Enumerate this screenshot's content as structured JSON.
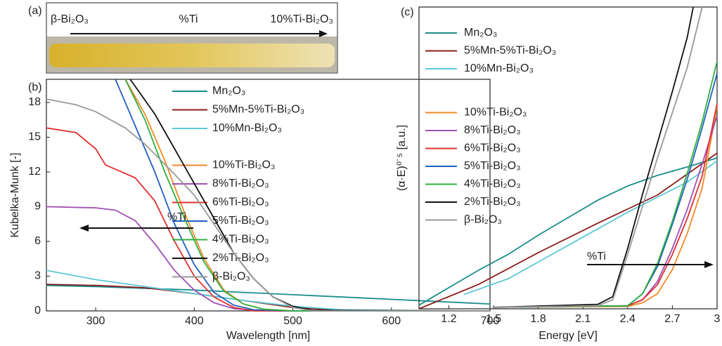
{
  "photo_strip": {
    "panel_label": "(a)",
    "left_label": "β-Bi₂O₃",
    "center_label": "%Ti",
    "right_label": "10%Ti-Bi₂O₃"
  },
  "chart_data": [
    {
      "type": "line",
      "panel_label": "(b)",
      "x_label": "Wavelength [nm]",
      "y_label": "Kubelka-Munk [-]",
      "xlim": [
        250,
        700
      ],
      "ylim": [
        0,
        20
      ],
      "xticks": [
        300,
        400,
        500,
        600,
        700
      ],
      "yticks": [
        0,
        3,
        6,
        9,
        12,
        15,
        18
      ],
      "annotation": "%Ti",
      "series": [
        {
          "name": "Mn₂O₃",
          "color": "#1a8c8c",
          "x": [
            250,
            300,
            350,
            400,
            450,
            500,
            550,
            600,
            650,
            700
          ],
          "values": [
            2.2,
            2.1,
            1.95,
            1.8,
            1.6,
            1.4,
            1.2,
            1.0,
            0.8,
            0.6
          ]
        },
        {
          "name": "5%Mn-5%Ti-Bi₂O₃",
          "color": "#8b1c1c",
          "x": [
            250,
            300,
            350,
            400,
            450,
            500,
            550,
            600,
            650,
            700
          ],
          "values": [
            2.3,
            2.2,
            2.0,
            1.5,
            0.9,
            0.3,
            0.05,
            0,
            0,
            0
          ]
        },
        {
          "name": "10%Mn-Bi₂O₃",
          "color": "#5cc8d6",
          "x": [
            250,
            300,
            350,
            400,
            450,
            500,
            550,
            600,
            650,
            700
          ],
          "values": [
            3.5,
            2.7,
            2.1,
            1.5,
            0.9,
            0.4,
            0.1,
            0.05,
            0,
            0
          ]
        },
        {
          "name": "10%Ti-Bi₂O₃",
          "color": "#f08a24",
          "x": [
            330,
            350,
            370,
            390,
            410,
            430,
            450,
            470,
            500,
            600,
            700
          ],
          "values": [
            20,
            17,
            13,
            8.5,
            4.5,
            1.8,
            0.6,
            0.15,
            0,
            0,
            0
          ]
        },
        {
          "name": "8%Ti-Bi₂O₃",
          "color": "#a050b4",
          "x": [
            250,
            300,
            320,
            340,
            360,
            380,
            400,
            420,
            440,
            460,
            500,
            700
          ],
          "values": [
            9,
            8.9,
            8.7,
            7.8,
            5.8,
            3.5,
            1.8,
            0.7,
            0.2,
            0.05,
            0,
            0
          ]
        },
        {
          "name": "6%Ti-Bi₂O₃",
          "color": "#e03030",
          "x": [
            250,
            280,
            300,
            310,
            340,
            360,
            380,
            400,
            420,
            440,
            460,
            700
          ],
          "values": [
            15.8,
            15.4,
            14,
            12.6,
            11.5,
            9.5,
            6,
            3,
            1.2,
            0.3,
            0,
            0
          ]
        },
        {
          "name": "5%Ti-Bi₂O₃",
          "color": "#2060c0",
          "x": [
            320,
            340,
            360,
            380,
            400,
            420,
            440,
            460,
            500,
            700
          ],
          "values": [
            20,
            16,
            12,
            7.5,
            4,
            1.6,
            0.5,
            0.1,
            0,
            0
          ]
        },
        {
          "name": "4%Ti-Bi₂O₃",
          "color": "#30b040",
          "x": [
            330,
            350,
            370,
            390,
            410,
            430,
            450,
            470,
            500,
            700
          ],
          "values": [
            20,
            16.5,
            12,
            8,
            4.2,
            1.7,
            0.6,
            0.15,
            0,
            0
          ]
        },
        {
          "name": "2%Ti-Bi₂O₃",
          "color": "#111111",
          "x": [
            335,
            360,
            380,
            400,
            420,
            440,
            460,
            480,
            500,
            520,
            700
          ],
          "values": [
            20,
            17,
            14,
            11,
            8,
            5,
            2.8,
            1.2,
            0.4,
            0.05,
            0
          ]
        },
        {
          "name": "β-Bi₂O₃",
          "color": "#999999",
          "x": [
            250,
            280,
            300,
            330,
            350,
            380,
            400,
            420,
            440,
            460,
            480,
            500,
            520,
            700
          ],
          "values": [
            18.3,
            17.8,
            17.2,
            15.8,
            14.4,
            11.8,
            10,
            7.5,
            5,
            2.8,
            1.2,
            0.3,
            0,
            0
          ]
        }
      ]
    },
    {
      "type": "line",
      "panel_label": "(c)",
      "x_label": "Energy [eV]",
      "y_label": "(α·E)⁰˙⁵ [a.u.]",
      "xlim": [
        1.0,
        3.0
      ],
      "ylim": [
        0,
        100
      ],
      "xticks": [
        1.2,
        1.5,
        1.8,
        2.1,
        2.4,
        2.7,
        3
      ],
      "annotation": "%Ti",
      "series": [
        {
          "name": "Mn₂O₃",
          "color": "#1a8c8c",
          "x": [
            1.0,
            1.2,
            1.4,
            1.6,
            1.8,
            2.0,
            2.2,
            2.4,
            2.6,
            2.8,
            3.0
          ],
          "values": [
            1.2,
            7,
            12.8,
            18.1,
            24.4,
            30.2,
            36,
            40.7,
            44.2,
            47,
            50
          ]
        },
        {
          "name": "5%Mn-5%Ti-Bi₂O₃",
          "color": "#8b1c1c",
          "x": [
            1.0,
            1.4,
            1.8,
            2.2,
            2.6,
            3.0
          ],
          "values": [
            0,
            8.1,
            18.6,
            28.4,
            37.7,
            51.6
          ]
        },
        {
          "name": "10%Mn-Bi₂O₃",
          "color": "#5cc8d6",
          "x": [
            1.3,
            1.6,
            2.0,
            2.4,
            2.8,
            3.0
          ],
          "values": [
            4.7,
            10,
            21,
            32,
            42,
            49
          ]
        },
        {
          "name": "10%Ti-Bi₂O₃",
          "color": "#f08a24",
          "x": [
            1.5,
            2.4,
            2.5,
            2.6,
            2.7,
            2.8,
            2.9,
            3.0
          ],
          "values": [
            0.5,
            0.8,
            2,
            5,
            13,
            25,
            40,
            67
          ]
        },
        {
          "name": "8%Ti-Bi₂O₃",
          "color": "#a050b4",
          "x": [
            1.5,
            2.4,
            2.5,
            2.6,
            2.7,
            2.8,
            2.9,
            3.0
          ],
          "values": [
            0.5,
            1,
            3,
            9,
            20,
            33,
            48,
            64
          ]
        },
        {
          "name": "6%Ti-Bi₂O₃",
          "color": "#e03030",
          "x": [
            1.5,
            2.4,
            2.5,
            2.6,
            2.7,
            2.8,
            2.9,
            3.0
          ],
          "values": [
            0.5,
            1,
            3,
            8,
            18,
            30,
            44,
            68
          ]
        },
        {
          "name": "5%Ti-Bi₂O₃",
          "color": "#2060c0",
          "x": [
            1.5,
            2.4,
            2.5,
            2.6,
            2.7,
            2.8,
            2.9,
            3.0
          ],
          "values": [
            0.5,
            1,
            5,
            14,
            28,
            43,
            60,
            78
          ]
        },
        {
          "name": "4%Ti-Bi₂O₃",
          "color": "#30b040",
          "x": [
            1.5,
            2.4,
            2.5,
            2.6,
            2.7,
            2.8,
            2.9,
            3.0
          ],
          "values": [
            0.5,
            1,
            5,
            15,
            29,
            45,
            62,
            82
          ]
        },
        {
          "name": "2%Ti-Bi₂O₃",
          "color": "#111111",
          "x": [
            1.5,
            2.2,
            2.3,
            2.4,
            2.5,
            2.6,
            2.7,
            2.8,
            2.84
          ],
          "values": [
            0.5,
            1.5,
            4,
            20,
            38,
            55,
            72,
            90,
            100
          ]
        },
        {
          "name": "β-Bi₂O₃",
          "color": "#999999",
          "x": [
            1.5,
            2.2,
            2.3,
            2.4,
            2.5,
            2.6,
            2.7,
            2.8,
            2.9
          ],
          "values": [
            0.5,
            1,
            3,
            18,
            34,
            50,
            65,
            80,
            100
          ]
        }
      ]
    }
  ]
}
